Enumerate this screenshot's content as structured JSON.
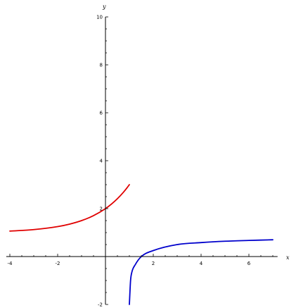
{
  "chart_data": {
    "type": "line",
    "xlabel": "x",
    "ylabel": "y",
    "xlim": [
      -4.15,
      7.2
    ],
    "ylim": [
      -2,
      10
    ],
    "x_ticks": [
      -4,
      -2,
      2,
      4,
      6
    ],
    "y_ticks": [
      -2,
      2,
      4,
      6,
      8,
      10
    ],
    "x_tick_labels": [
      "-4",
      "-2",
      "2",
      "4",
      "6"
    ],
    "y_tick_labels": [
      "-2",
      "2",
      "4",
      "6",
      "8",
      "10"
    ],
    "grid": false,
    "legend": "none",
    "series": [
      {
        "color": "#e00000",
        "x": [
          -4.0,
          -3.0,
          -2.0,
          -1.5,
          -1.0,
          -0.5,
          0.0,
          0.25,
          0.5,
          0.75,
          0.9,
          1.0
        ],
        "y": [
          1.0625,
          1.125,
          1.25,
          1.354,
          1.5,
          1.707,
          2.0,
          2.189,
          2.414,
          2.682,
          2.866,
          3.0
        ]
      },
      {
        "color": "#0000cc",
        "x": [
          1.0,
          1.05,
          1.1,
          1.25,
          1.5,
          2.0,
          3.0,
          4.0,
          5.0,
          6.0,
          7.0
        ],
        "y": [
          -2.0,
          -1.0,
          -0.667,
          -0.333,
          0.0,
          0.25,
          0.5,
          0.583,
          0.64,
          0.673,
          0.7
        ]
      }
    ]
  }
}
